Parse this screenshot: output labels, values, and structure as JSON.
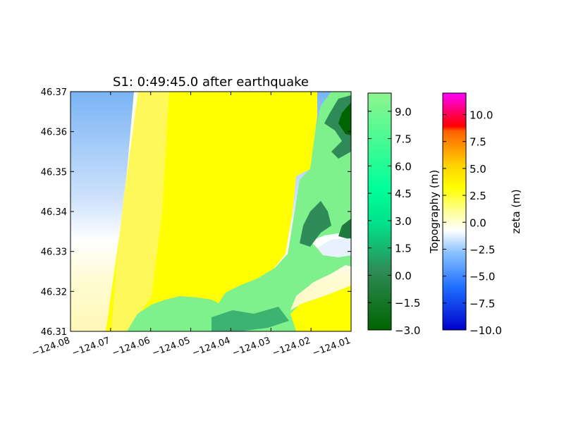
{
  "chart_data": {
    "type": "heatmap",
    "title": "S1: 0:49:45.0 after earthquake",
    "xlabel": "",
    "ylabel": "",
    "xlim": [
      -124.08,
      -124.01
    ],
    "ylim": [
      46.31,
      46.37
    ],
    "x_ticks": [
      "−124.08",
      "−124.07",
      "−124.06",
      "−124.05",
      "−124.04",
      "−124.03",
      "−124.02",
      "−124.01"
    ],
    "y_ticks": [
      "46.31",
      "46.32",
      "46.33",
      "46.34",
      "46.35",
      "46.36",
      "46.37"
    ],
    "colorbars": [
      {
        "label": "Topography (m)",
        "range": [
          -3.0,
          10.0
        ],
        "ticks": [
          "−3.0",
          "−1.5",
          "0.0",
          "1.5",
          "3.0",
          "4.5",
          "6.0",
          "7.5",
          "9.0"
        ],
        "colors": [
          "#006400",
          "#3cb371",
          "#00fa9a",
          "#7fff7f",
          "#8ff58f"
        ]
      },
      {
        "label": "zeta (m)",
        "range": [
          -10.0,
          12.0
        ],
        "ticks": [
          "−10.0",
          "−7.5",
          "−5.0",
          "−2.5",
          "0.0",
          "2.5",
          "5.0",
          "7.5",
          "10.0"
        ],
        "colors": [
          "#0000cd",
          "#1e6fff",
          "#7fbfff",
          "#ffffff",
          "#ffff66",
          "#ffd700",
          "#ff8c00",
          "#ff4500",
          "#ff0000",
          "#ff00ff"
        ]
      }
    ]
  }
}
